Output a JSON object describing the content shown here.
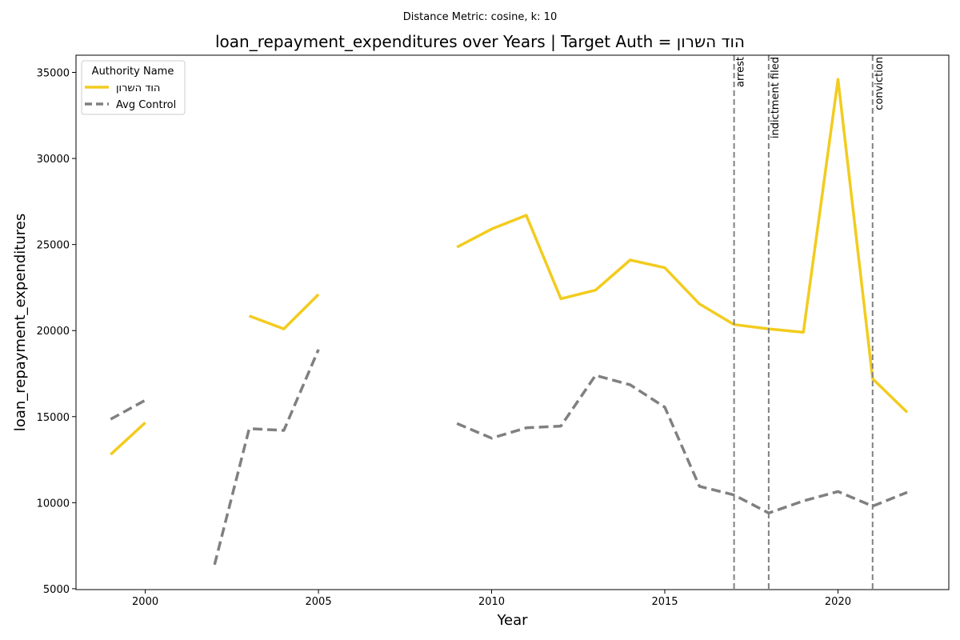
{
  "chart_data": {
    "type": "line",
    "suptitle": "Distance Metric: cosine, k: 10",
    "title": "loan_repayment_expenditures over Years | Target Auth = הוד השרון",
    "xlabel": "Year",
    "ylabel": "loan_repayment_expenditures",
    "xlim": [
      1998,
      2023.2
    ],
    "ylim": [
      4950,
      36000
    ],
    "x_ticks": [
      2000,
      2005,
      2010,
      2015,
      2020
    ],
    "y_ticks": [
      5000,
      10000,
      15000,
      20000,
      25000,
      30000,
      35000
    ],
    "grid": false,
    "legend": {
      "title": "Authority Name",
      "placement": "top-left"
    },
    "series": [
      {
        "name": "הוד השרון",
        "color": "#f2cc1f",
        "style": "solid",
        "points": [
          [
            1999,
            12800
          ],
          [
            2000,
            14650
          ],
          [
            2001,
            null
          ],
          [
            2002,
            null
          ],
          [
            2003,
            20850
          ],
          [
            2004,
            20100
          ],
          [
            2005,
            22100
          ],
          [
            2006,
            null
          ],
          [
            2007,
            null
          ],
          [
            2008,
            null
          ],
          [
            2009,
            24850
          ],
          [
            2010,
            25900
          ],
          [
            2011,
            26700
          ],
          [
            2012,
            21850
          ],
          [
            2013,
            22350
          ],
          [
            2014,
            24100
          ],
          [
            2015,
            23650
          ],
          [
            2016,
            21550
          ],
          [
            2017,
            20350
          ],
          [
            2018,
            20100
          ],
          [
            2019,
            19900
          ],
          [
            2020,
            34600
          ],
          [
            2021,
            17200
          ],
          [
            2022,
            15250
          ]
        ]
      },
      {
        "name": "Avg Control",
        "color": "#808080",
        "style": "dashed",
        "points": [
          [
            1999,
            14850
          ],
          [
            2000,
            15950
          ],
          [
            2001,
            null
          ],
          [
            2002,
            6400
          ],
          [
            2003,
            14300
          ],
          [
            2004,
            14200
          ],
          [
            2005,
            18900
          ],
          [
            2006,
            null
          ],
          [
            2007,
            null
          ],
          [
            2008,
            null
          ],
          [
            2009,
            14600
          ],
          [
            2010,
            13750
          ],
          [
            2011,
            14350
          ],
          [
            2012,
            14450
          ],
          [
            2013,
            17400
          ],
          [
            2014,
            16850
          ],
          [
            2015,
            15550
          ],
          [
            2016,
            10950
          ],
          [
            2017,
            10450
          ],
          [
            2018,
            9400
          ],
          [
            2019,
            10100
          ],
          [
            2020,
            10650
          ],
          [
            2021,
            9800
          ],
          [
            2022,
            10600
          ]
        ]
      }
    ],
    "events": [
      {
        "x": 2017,
        "label": "arrest"
      },
      {
        "x": 2018,
        "label": "indictment filed"
      },
      {
        "x": 2021,
        "label": "conviction"
      }
    ]
  }
}
